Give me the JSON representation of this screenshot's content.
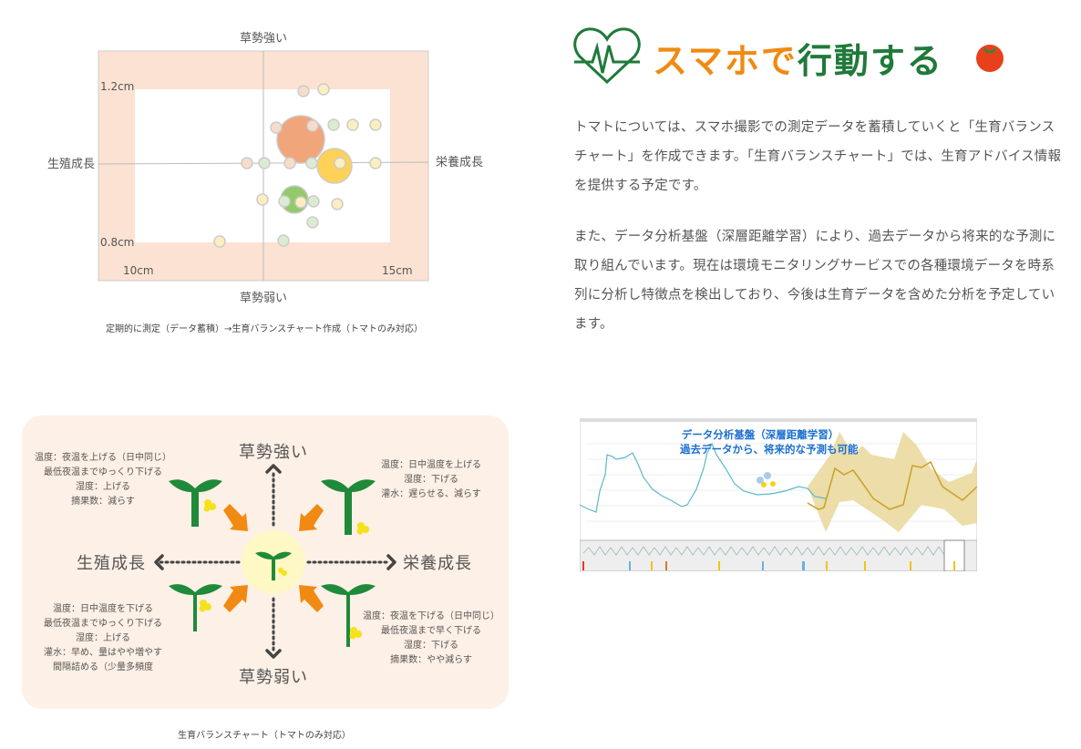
{
  "heading": {
    "icon": "heart-pulse-icon",
    "title_orange": "スマホで",
    "title_green": "行動する",
    "tomato_icon": "tomato-icon",
    "colors": {
      "orange": "#f08a12",
      "green": "#1f7a3a",
      "tomato": "#e8401c"
    }
  },
  "paragraphs": [
    "トマトについては、スマホ撮影での測定データを蓄積していくと「生育バランスチャート」を作成できます。「生育バランスチャート」では、生育アドバイス情報を提供する予定です。",
    "また、データ分析基盤（深層距離学習）により、過去データから将来的な予測に取り組んでいます。現在は環境モニタリングサービスでの各種環境データを時系列に分析し特徴点を検出しており、今後は生育データを含めた分析を予定しています。"
  ],
  "bubble_figure": {
    "top": "草勢強い",
    "bottom": "草勢弱い",
    "left": "生殖成長",
    "right": "栄養成長",
    "y_top": "1.2cm",
    "y_bottom": "0.8cm",
    "x_left": "10cm",
    "x_right": "15cm",
    "caption": "定期的に測定（データ蓄積）→生育バランスチャート作成（トマトのみ対応）"
  },
  "balance_figure": {
    "top": "草勢強い",
    "bottom": "草勢弱い",
    "left": "生殖成長",
    "right": "栄養成長",
    "top_left": [
      "温度：夜温を上げる（日中同じ）",
      "最低夜温までゆっくり下げる",
      "湿度：上げる",
      "摘果数：減らす"
    ],
    "top_right": [
      "温度：日中温度を上げる",
      "湿度：下げる",
      "灌水：遅らせる、減らす"
    ],
    "bottom_left": [
      "温度：日中温度を下げる",
      "最低夜温までゆっくり下げる",
      "湿度：上げる",
      "灌水：早め、量はやや増やす",
      "間隔詰める（少量多頻度"
    ],
    "bottom_right": [
      "温度：夜温を下げる（日中同じ）",
      "最低夜温まで早く下げる",
      "湿度：下げる",
      "摘果数：やや減らす"
    ],
    "caption": "生育バランスチャート（トマトのみ対応）"
  },
  "analysis_figure": {
    "line1": "データ分析基盤（深層距離学習）",
    "line2": "過去データから、将来的な予測も可能"
  }
}
